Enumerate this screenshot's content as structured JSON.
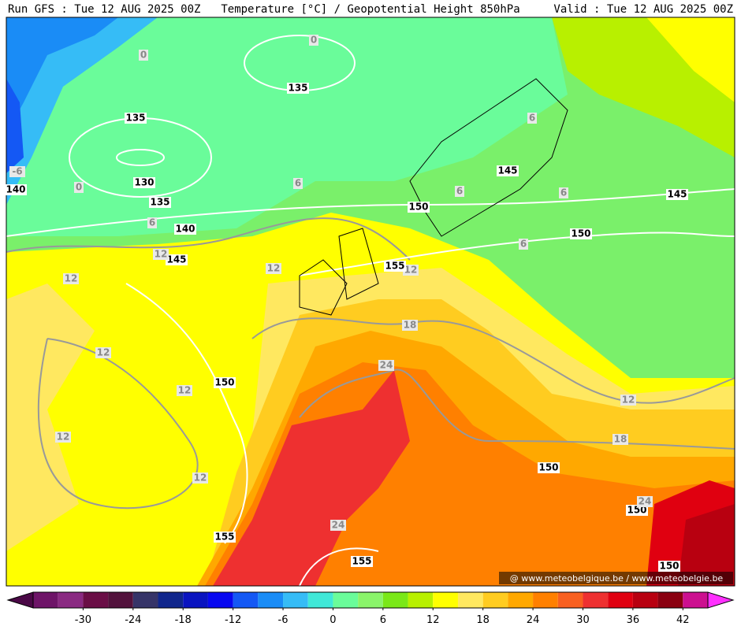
{
  "header": {
    "left": "Run GFS : Tue 12 AUG 2025 00Z",
    "center": "Temperature [°C] / Geopotential Height 850hPa",
    "right": "Valid : Tue 12 AUG 2025 00Z"
  },
  "contour_labels": [
    "0",
    "0",
    "0",
    "135",
    "135",
    "135",
    "130",
    "-6",
    "140",
    "140",
    "6",
    "6",
    "6",
    "6",
    "6",
    "6",
    "145",
    "145",
    "145",
    "150",
    "150",
    "150",
    "150",
    "150",
    "150",
    "12",
    "12",
    "12",
    "12",
    "12",
    "12",
    "12",
    "12",
    "12",
    "155",
    "155",
    "155",
    "18",
    "18",
    "24",
    "24",
    "24"
  ],
  "watermark": "@ www.meteobelgique.be / www.meteobelgie.be",
  "colorbar": {
    "colors": [
      "#4a0846",
      "#6e1468",
      "#8a2a82",
      "#6a0e46",
      "#52123c",
      "#363468",
      "#10268c",
      "#0a14c0",
      "#0808f0",
      "#1458f4",
      "#1a8cf6",
      "#36bcf6",
      "#40e8d8",
      "#6afc9a",
      "#8af46a",
      "#7ae818",
      "#b8f000",
      "#ffff00",
      "#ffe860",
      "#ffcc20",
      "#ffa800",
      "#ff8000",
      "#f86020",
      "#ee3030",
      "#e00010",
      "#b80010",
      "#8a0010",
      "#cc1090",
      "#ff30ff"
    ],
    "ticks": [
      -30,
      -24,
      -18,
      -12,
      -6,
      0,
      6,
      12,
      18,
      24,
      30,
      36,
      42
    ]
  }
}
